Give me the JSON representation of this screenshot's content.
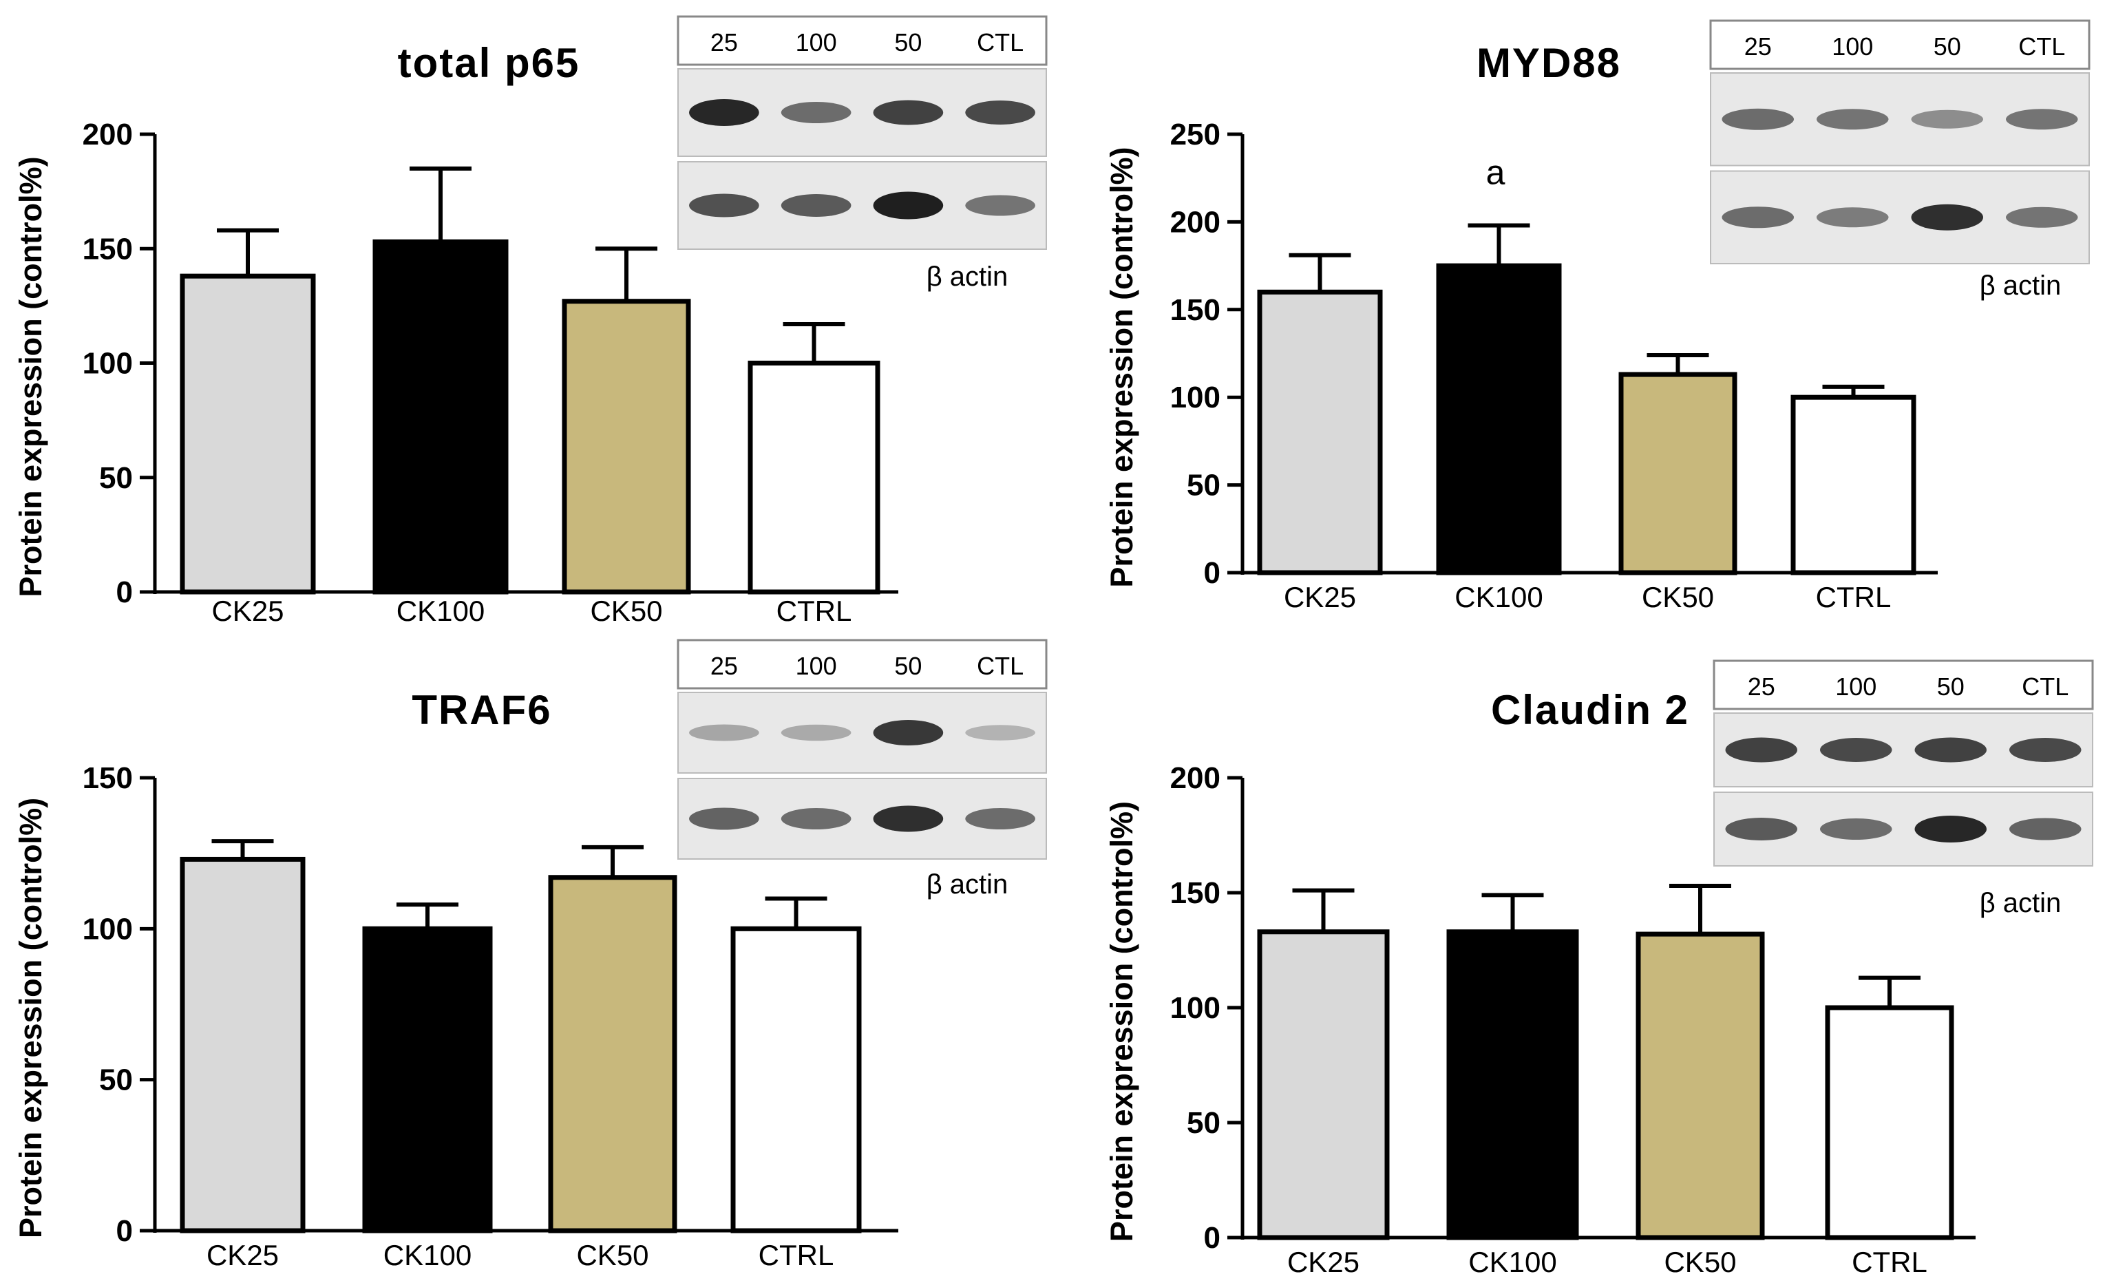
{
  "colors": {
    "CK25": "#d9d9d9",
    "CK100": "#000000",
    "CK50": "#c8b87c",
    "CTRL": "#ffffff",
    "axis": "#000000",
    "blot_bg": "#e8e8e8",
    "band": "#141414"
  },
  "chart_data": [
    {
      "type": "bar",
      "title": "total p65",
      "ylabel": "Protein expression (control%)",
      "xlabel": "",
      "categories": [
        "CK25",
        "CK100",
        "CK50",
        "CTRL"
      ],
      "values": [
        138,
        153,
        127,
        100
      ],
      "errors": [
        20,
        32,
        23,
        17
      ],
      "ylim": [
        0,
        200
      ],
      "yticks": [
        0,
        50,
        100,
        150,
        200
      ],
      "annotations": [
        "",
        "",
        "",
        ""
      ],
      "grid": false,
      "blot": {
        "lanes": [
          "25",
          "100",
          "50",
          "CTL"
        ],
        "label": "β actin",
        "top_band_intensity": [
          0.95,
          0.55,
          0.8,
          0.75
        ],
        "bottom_band_intensity": [
          0.7,
          0.65,
          1.0,
          0.5
        ]
      }
    },
    {
      "type": "bar",
      "title": "MYD88",
      "ylabel": "Protein expression (control%)",
      "xlabel": "",
      "categories": [
        "CK25",
        "CK100",
        "CK50",
        "CTRL"
      ],
      "values": [
        160,
        175,
        113,
        100
      ],
      "errors": [
        21,
        23,
        11,
        6
      ],
      "ylim": [
        0,
        250
      ],
      "yticks": [
        0,
        50,
        100,
        150,
        200,
        250
      ],
      "annotations": [
        "",
        "a",
        "",
        ""
      ],
      "grid": false,
      "blot": {
        "lanes": [
          "25",
          "100",
          "50",
          "CTL"
        ],
        "label": "β actin",
        "top_band_intensity": [
          0.55,
          0.5,
          0.35,
          0.5
        ],
        "bottom_band_intensity": [
          0.55,
          0.45,
          0.9,
          0.5
        ]
      }
    },
    {
      "type": "bar",
      "title": "TRAF6",
      "ylabel": "Protein expression (control%)",
      "xlabel": "",
      "categories": [
        "CK25",
        "CK100",
        "CK50",
        "CTRL"
      ],
      "values": [
        123,
        100,
        117,
        100
      ],
      "errors": [
        6,
        8,
        10,
        10
      ],
      "ylim": [
        0,
        150
      ],
      "yticks": [
        0,
        50,
        100,
        150
      ],
      "annotations": [
        "",
        "",
        "",
        ""
      ],
      "grid": false,
      "blot": {
        "lanes": [
          "25",
          "100",
          "50",
          "CTL"
        ],
        "label": "β actin",
        "top_band_intensity": [
          0.2,
          0.18,
          0.85,
          0.12
        ],
        "bottom_band_intensity": [
          0.6,
          0.55,
          0.9,
          0.55
        ]
      }
    },
    {
      "type": "bar",
      "title": "Claudin 2",
      "ylabel": "Protein expression (control%)",
      "xlabel": "",
      "categories": [
        "CK25",
        "CK100",
        "CK50",
        "CTRL"
      ],
      "values": [
        133,
        133,
        132,
        100
      ],
      "errors": [
        18,
        16,
        21,
        13
      ],
      "ylim": [
        0,
        200
      ],
      "yticks": [
        0,
        50,
        100,
        150,
        200
      ],
      "annotations": [
        "",
        "",
        "",
        ""
      ],
      "grid": false,
      "blot": {
        "lanes": [
          "25",
          "100",
          "50",
          "CTL"
        ],
        "label": "β actin",
        "top_band_intensity": [
          0.8,
          0.75,
          0.8,
          0.75
        ],
        "bottom_band_intensity": [
          0.65,
          0.55,
          0.95,
          0.6
        ]
      }
    }
  ]
}
